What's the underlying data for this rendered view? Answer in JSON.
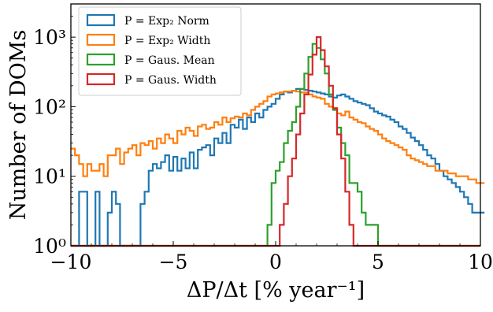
{
  "chart_data": {
    "type": "histogram",
    "xlabel": "ΔP/Δt [% year⁻¹]",
    "ylabel": "Number of DOMs",
    "xlim": [
      -10,
      10
    ],
    "ylim": [
      1,
      3000
    ],
    "yscale": "log",
    "grid": false,
    "legend_position": "top-left",
    "x_ticks": [
      -10,
      -5,
      0,
      5,
      10
    ],
    "x_tick_labels": [
      "−10",
      "−5",
      "0",
      "5",
      "10"
    ],
    "y_ticks": [
      1,
      10,
      100,
      1000
    ],
    "y_tick_labels": [
      "10⁰",
      "10¹",
      "10²",
      "10³"
    ],
    "bin_start": -10,
    "bin_width": 0.2,
    "series": [
      {
        "name": "P = Exp₂ Norm",
        "color": "#1f77b4",
        "counts": [
          1,
          1,
          6,
          6,
          1,
          1,
          6,
          1,
          1,
          3,
          6,
          4,
          1,
          1,
          1,
          1,
          1,
          4,
          6,
          12,
          15,
          13,
          16,
          20,
          12,
          19,
          12,
          18,
          13,
          22,
          13,
          24,
          26,
          28,
          20,
          35,
          30,
          42,
          30,
          55,
          50,
          65,
          48,
          70,
          60,
          80,
          70,
          90,
          100,
          110,
          130,
          150,
          165,
          160,
          170,
          180,
          180,
          175,
          170,
          165,
          160,
          155,
          150,
          140,
          135,
          145,
          150,
          140,
          130,
          120,
          115,
          110,
          105,
          95,
          85,
          80,
          75,
          72,
          65,
          60,
          52,
          48,
          42,
          36,
          32,
          28,
          24,
          20,
          18,
          15,
          12,
          10,
          9,
          8,
          7,
          6,
          5,
          4,
          3,
          3,
          3
        ]
      },
      {
        "name": "P = Exp₂ Width",
        "color": "#ff7f0e",
        "counts": [
          25,
          20,
          15,
          10,
          15,
          12,
          12,
          15,
          10,
          20,
          20,
          25,
          15,
          22,
          25,
          28,
          20,
          30,
          28,
          32,
          25,
          35,
          30,
          40,
          35,
          30,
          45,
          40,
          50,
          45,
          38,
          52,
          55,
          48,
          50,
          60,
          55,
          70,
          60,
          68,
          72,
          70,
          80,
          75,
          90,
          100,
          110,
          120,
          140,
          150,
          155,
          160,
          165,
          165,
          170,
          165,
          160,
          160,
          150,
          140,
          135,
          130,
          110,
          100,
          95,
          80,
          75,
          85,
          70,
          65,
          60,
          58,
          52,
          48,
          45,
          40,
          35,
          32,
          30,
          28,
          26,
          24,
          20,
          18,
          17,
          16,
          15,
          14,
          14,
          12,
          12,
          12,
          11,
          11,
          10,
          10,
          10,
          9,
          9,
          8,
          8
        ]
      },
      {
        "name": "P = Gaus. Mean",
        "color": "#2ca02c",
        "counts": [
          1,
          1,
          1,
          1,
          1,
          1,
          1,
          1,
          1,
          1,
          1,
          1,
          1,
          1,
          1,
          1,
          1,
          1,
          1,
          1,
          1,
          1,
          1,
          1,
          1,
          1,
          1,
          1,
          1,
          1,
          1,
          1,
          1,
          1,
          1,
          1,
          1,
          1,
          1,
          1,
          1,
          1,
          1,
          1,
          1,
          1,
          1,
          1,
          2,
          8,
          12,
          16,
          30,
          45,
          60,
          100,
          180,
          300,
          520,
          800,
          700,
          480,
          300,
          150,
          90,
          50,
          30,
          20,
          8,
          8,
          6,
          3,
          2,
          2,
          2,
          1,
          1,
          1,
          1,
          1,
          1,
          1,
          1,
          1,
          1,
          1,
          1,
          1,
          1,
          1,
          1,
          1,
          1,
          1,
          1,
          1,
          1,
          1,
          1,
          1
        ]
      },
      {
        "name": "P = Gaus. Width",
        "color": "#d62728",
        "counts": [
          1,
          1,
          1,
          1,
          1,
          1,
          1,
          1,
          1,
          1,
          1,
          1,
          1,
          1,
          1,
          1,
          1,
          1,
          1,
          1,
          1,
          1,
          1,
          1,
          1,
          1,
          1,
          1,
          1,
          1,
          1,
          1,
          1,
          1,
          1,
          1,
          1,
          1,
          1,
          1,
          1,
          1,
          1,
          1,
          1,
          1,
          1,
          1,
          1,
          1,
          1,
          2,
          4,
          10,
          18,
          40,
          80,
          150,
          290,
          560,
          1000,
          650,
          380,
          200,
          95,
          40,
          18,
          6,
          2,
          1,
          1,
          1,
          1,
          1,
          1,
          1,
          1,
          1,
          1,
          1,
          1,
          1,
          1,
          1,
          1,
          1,
          1,
          1,
          1,
          1,
          1,
          1,
          1,
          1,
          1,
          1,
          1,
          1,
          1,
          1
        ]
      }
    ]
  }
}
